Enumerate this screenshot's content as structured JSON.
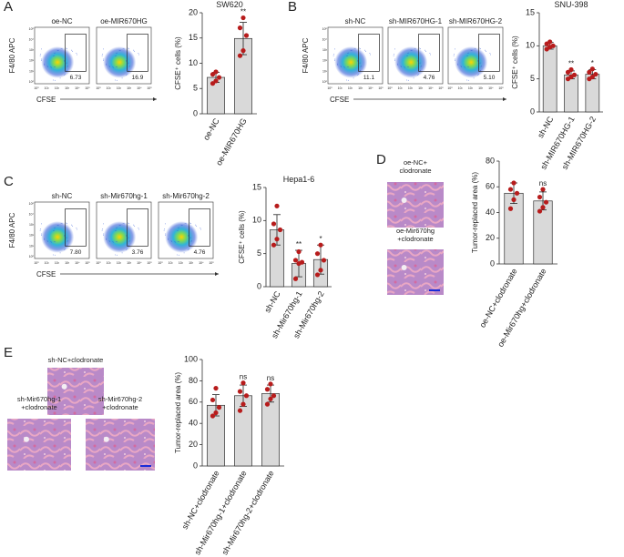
{
  "panels": [
    {
      "label": "A",
      "y_axis": "F4/80 APC",
      "x_axis": "CFSE",
      "flow_plots": [
        {
          "title": "oe-NC",
          "gate_value": "6.73"
        },
        {
          "title": "oe-MIR670HG",
          "gate_value": "16.9"
        }
      ]
    },
    {
      "label": "B",
      "y_axis": "F4/80 APC",
      "x_axis": "CFSE",
      "flow_plots": [
        {
          "title": "sh-NC",
          "gate_value": "11.1"
        },
        {
          "title": "sh-MIR670HG-1",
          "gate_value": "4.76"
        },
        {
          "title": "sh-MIR670HG-2",
          "gate_value": "5.10"
        }
      ]
    },
    {
      "label": "C",
      "y_axis": "F4/80 APC",
      "x_axis": "CFSE",
      "flow_plots": [
        {
          "title": "sh-NC",
          "gate_value": "7.80"
        },
        {
          "title": "sh-Mir670hg-1",
          "gate_value": "3.76"
        },
        {
          "title": "sh-Mir670hg-2",
          "gate_value": "4.76"
        }
      ]
    },
    {
      "label": "D",
      "images": [
        {
          "caption": [
            "oe-NC+",
            "clodronate"
          ]
        },
        {
          "caption": [
            "oe-Mir670hg",
            "+clodronate"
          ]
        }
      ]
    },
    {
      "label": "E",
      "images": [
        {
          "caption": [
            "sh-NC+clodronate"
          ]
        },
        {
          "caption": [
            "sh-Mir670hg-1",
            "+clodronate"
          ]
        },
        {
          "caption": [
            "sh-Mir670hg-2",
            "+clodronate"
          ]
        }
      ]
    }
  ],
  "flow_axis_ticks": [
    "10⁰",
    "10¹",
    "10²",
    "10³",
    "10⁴",
    "10⁵"
  ],
  "chart_data": [
    {
      "type": "bar",
      "title": "SW620",
      "y_label": "CFSE⁺ cells (%)",
      "categories": [
        "oe-NC",
        "oe-MIR670HG"
      ],
      "values": [
        7.2,
        14.9
      ],
      "errors": [
        1.0,
        3.2
      ],
      "points": [
        [
          6,
          6.5,
          7.2,
          7.8,
          8.3
        ],
        [
          11.5,
          12.5,
          15.5,
          17,
          19
        ]
      ],
      "significance": [
        null,
        "**"
      ],
      "ylim": [
        0,
        20
      ],
      "yticks": [
        0,
        5,
        10,
        15,
        20
      ],
      "color": "#d9d9d9",
      "point_color": "#b71c1c"
    },
    {
      "type": "bar",
      "title": "SNU-398",
      "y_label": "CFSE⁺ cells (%)",
      "categories": [
        "sh-NC",
        "sh-MIR670HG-1",
        "sh-MIR670HG-2"
      ],
      "values": [
        10,
        5.6,
        5.7
      ],
      "errors": [
        0.5,
        0.6,
        0.7
      ],
      "points": [
        [
          9.5,
          9.8,
          10,
          10.3,
          10.6
        ],
        [
          5,
          5.3,
          5.6,
          6,
          6.4
        ],
        [
          5,
          5.3,
          5.7,
          6,
          6.5
        ]
      ],
      "significance": [
        null,
        "**",
        "*"
      ],
      "ylim": [
        0,
        15
      ],
      "yticks": [
        0,
        5,
        10,
        15
      ],
      "color": "#d9d9d9",
      "point_color": "#b71c1c"
    },
    {
      "type": "bar",
      "title": "Hepa1-6",
      "y_label": "CFSE⁺ cells (%)",
      "categories": [
        "sh-NC",
        "sh-Mir670hg-1",
        "sh-Mir670hg-2"
      ],
      "values": [
        8.6,
        3.5,
        4.1
      ],
      "errors": [
        2.3,
        2.0,
        2.2
      ],
      "points": [
        [
          6.3,
          7.2,
          8.6,
          9.5,
          12.2
        ],
        [
          1.2,
          3.5,
          3.7,
          4,
          5.3
        ],
        [
          1.8,
          2.5,
          4,
          5,
          6.3
        ]
      ],
      "significance": [
        null,
        "**",
        "*"
      ],
      "ylim": [
        0,
        15
      ],
      "yticks": [
        0,
        5,
        10,
        15
      ],
      "color": "#d9d9d9",
      "point_color": "#b71c1c"
    },
    {
      "type": "bar",
      "y_label": "Tumor-replaced area (%)",
      "categories": [
        "oe-NC+clodronate",
        "oe-Mir670hg+clodronate"
      ],
      "values": [
        55,
        49
      ],
      "errors": [
        8,
        7
      ],
      "points": [
        [
          43,
          50,
          55,
          58,
          63
        ],
        [
          41,
          44,
          48,
          52,
          58
        ]
      ],
      "significance": [
        null,
        "ns"
      ],
      "ylim": [
        0,
        80
      ],
      "yticks": [
        0,
        20,
        40,
        60,
        80
      ],
      "color": "#d9d9d9",
      "point_color": "#b71c1c"
    },
    {
      "type": "bar",
      "y_label": "Tumor-replaced area (%)",
      "categories": [
        "sh-NC+clodronate",
        "sh-Mir670hg-1+clodronate",
        "sh-Mir670hg-2+clodronate"
      ],
      "values": [
        57,
        66,
        68
      ],
      "errors": [
        10,
        10,
        8
      ],
      "points": [
        [
          47,
          50,
          55,
          62,
          73
        ],
        [
          52,
          58,
          66,
          70,
          78
        ],
        [
          58,
          63,
          66,
          72,
          77
        ]
      ],
      "significance": [
        null,
        "ns",
        "ns"
      ],
      "ylim": [
        0,
        100
      ],
      "yticks": [
        0,
        20,
        40,
        60,
        80,
        100
      ],
      "color": "#d9d9d9",
      "point_color": "#b71c1c"
    }
  ]
}
